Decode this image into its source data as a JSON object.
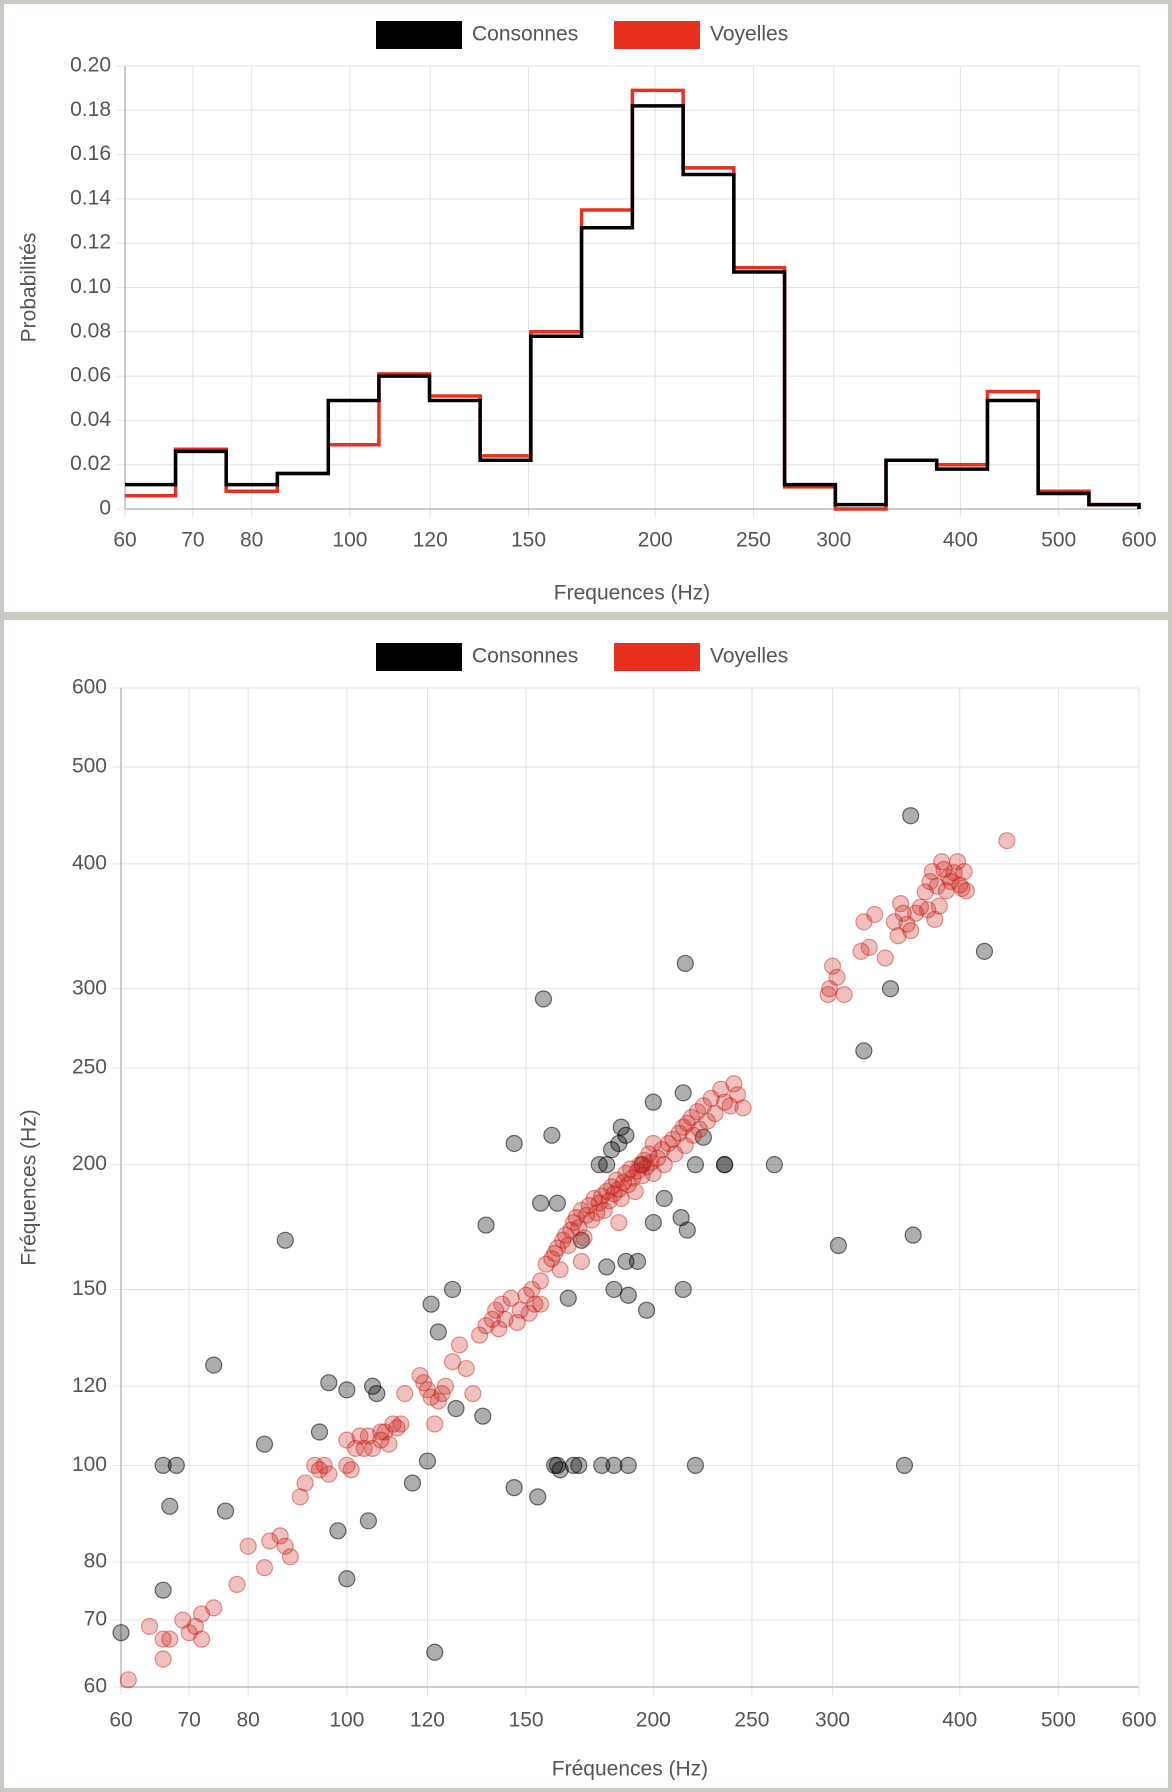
{
  "chart_data": [
    {
      "type": "histogram-step",
      "title": "",
      "xlabel": "Frequences (Hz)",
      "ylabel": "Probabilités",
      "xscale": "log",
      "xlim": [
        60,
        600
      ],
      "ylim": [
        0,
        0.2
      ],
      "x_ticks": [
        60,
        70,
        80,
        100,
        120,
        150,
        200,
        250,
        300,
        400,
        500,
        600
      ],
      "y_ticks": [
        0,
        0.02,
        0.04,
        0.06,
        0.08,
        0.1,
        0.12,
        0.14,
        0.16,
        0.18,
        0.2
      ],
      "y_tick_labels": [
        "0",
        "0.02",
        "0.04",
        "0.06",
        "0.08",
        "0.10",
        "0.12",
        "0.14",
        "0.16",
        "0.18",
        "0.20"
      ],
      "bin_edges": [
        60,
        67.3,
        75.5,
        84.8,
        95.2,
        106.8,
        119.8,
        134.4,
        150.8,
        169.2,
        189.9,
        213.1,
        239.1,
        268.3,
        301.1,
        337.8,
        379,
        425.3,
        477.2,
        535.5,
        600
      ],
      "series": [
        {
          "name": "Consonnes",
          "color": "#000000",
          "values": [
            0.011,
            0.026,
            0.011,
            0.016,
            0.049,
            0.06,
            0.049,
            0.022,
            0.078,
            0.127,
            0.182,
            0.151,
            0.107,
            0.011,
            0.002,
            0.022,
            0.018,
            0.049,
            0.007,
            0.002,
            0.0
          ]
        },
        {
          "name": "Voyelles",
          "color": "#e8301f",
          "values": [
            0.006,
            0.027,
            0.008,
            0.016,
            0.029,
            0.061,
            0.051,
            0.024,
            0.08,
            0.135,
            0.189,
            0.154,
            0.109,
            0.01,
            0.0,
            0.022,
            0.02,
            0.053,
            0.008,
            0.002,
            0.0
          ]
        }
      ],
      "legend": {
        "position": "top-center",
        "items": [
          "Consonnes",
          "Voyelles"
        ]
      }
    },
    {
      "type": "scatter",
      "title": "",
      "xlabel": "Fréquences (Hz)",
      "ylabel": "Fréquences (Hz)",
      "xscale": "log",
      "yscale": "log",
      "xlim": [
        60,
        600
      ],
      "ylim": [
        60,
        600
      ],
      "x_ticks": [
        60,
        70,
        80,
        100,
        120,
        150,
        200,
        250,
        300,
        400,
        500,
        600
      ],
      "y_ticks": [
        60,
        70,
        80,
        100,
        120,
        150,
        200,
        250,
        300,
        400,
        500,
        600
      ],
      "legend": {
        "position": "top-center",
        "items": [
          "Consonnes",
          "Voyelles"
        ]
      },
      "series": [
        {
          "name": "Consonnes",
          "color": "#000000",
          "points": [
            [
              60,
              68
            ],
            [
              66,
              75
            ],
            [
              66,
              100
            ],
            [
              67,
              91
            ],
            [
              68,
              100
            ],
            [
              74,
              126
            ],
            [
              76,
              90
            ],
            [
              83,
              105
            ],
            [
              87,
              168
            ],
            [
              94,
              108
            ],
            [
              96,
              121
            ],
            [
              98,
              86
            ],
            [
              100,
              77
            ],
            [
              100,
              119
            ],
            [
              105,
              88
            ],
            [
              106,
              120
            ],
            [
              107,
              118
            ],
            [
              116,
              96
            ],
            [
              120,
              101
            ],
            [
              121,
              145
            ],
            [
              122,
              65
            ],
            [
              123,
              136
            ],
            [
              127,
              150
            ],
            [
              128,
              114
            ],
            [
              136,
              112
            ],
            [
              137,
              174
            ],
            [
              146,
              210
            ],
            [
              146,
              95
            ],
            [
              154,
              93
            ],
            [
              155,
              183
            ],
            [
              156,
              293
            ],
            [
              159,
              214
            ],
            [
              160,
              100
            ],
            [
              161,
              183
            ],
            [
              161,
              100
            ],
            [
              162,
              99
            ],
            [
              165,
              147
            ],
            [
              167,
              100
            ],
            [
              169,
              100
            ],
            [
              177,
              200
            ],
            [
              178,
              100
            ],
            [
              180,
              158
            ],
            [
              182,
              207
            ],
            [
              183,
              150
            ],
            [
              183,
              100
            ],
            [
              185,
              210
            ],
            [
              186,
              218
            ],
            [
              188,
              214
            ],
            [
              188,
              160
            ],
            [
              189,
              148
            ],
            [
              189,
              100
            ],
            [
              193,
              160
            ],
            [
              197,
              143
            ],
            [
              200,
              175
            ],
            [
              200,
              231
            ],
            [
              205,
              185
            ],
            [
              213,
              177
            ],
            [
              214,
              236
            ],
            [
              214,
              150
            ],
            [
              215,
              318
            ],
            [
              216,
              172
            ],
            [
              220,
              100
            ],
            [
              220,
              200
            ],
            [
              224,
              213
            ],
            [
              235,
              200
            ],
            [
              235,
              200
            ],
            [
              263,
              200
            ],
            [
              304,
              166
            ],
            [
              322,
              260
            ],
            [
              342,
              300
            ],
            [
              353,
              100
            ],
            [
              358,
              447
            ],
            [
              360,
              170
            ],
            [
              423,
              327
            ],
            [
              180,
              200
            ],
            [
              170,
              168
            ],
            [
              195,
              200
            ]
          ]
        },
        {
          "name": "Voyelles",
          "color": "#e8301f",
          "points": [
            [
              61,
              61
            ],
            [
              64,
              69
            ],
            [
              66,
              64
            ],
            [
              66,
              67
            ],
            [
              67,
              67
            ],
            [
              69,
              70
            ],
            [
              70,
              68
            ],
            [
              71,
              69
            ],
            [
              72,
              67
            ],
            [
              72,
              71
            ],
            [
              74,
              72
            ],
            [
              78,
              76
            ],
            [
              80,
              83
            ],
            [
              83,
              79
            ],
            [
              84,
              84
            ],
            [
              86,
              85
            ],
            [
              87,
              83
            ],
            [
              88,
              81
            ],
            [
              90,
              93
            ],
            [
              91,
              96
            ],
            [
              93,
              100
            ],
            [
              94,
              99
            ],
            [
              95,
              100
            ],
            [
              96,
              98
            ],
            [
              100,
              100
            ],
            [
              100,
              106
            ],
            [
              101,
              99
            ],
            [
              102,
              104
            ],
            [
              103,
              107
            ],
            [
              104,
              104
            ],
            [
              105,
              107
            ],
            [
              106,
              104
            ],
            [
              108,
              106
            ],
            [
              108,
              108
            ],
            [
              109,
              108
            ],
            [
              110,
              105
            ],
            [
              111,
              110
            ],
            [
              112,
              109
            ],
            [
              113,
              110
            ],
            [
              114,
              118
            ],
            [
              118,
              123
            ],
            [
              119,
              121
            ],
            [
              120,
              119
            ],
            [
              121,
              117
            ],
            [
              122,
              110
            ],
            [
              123,
              116
            ],
            [
              124,
              118
            ],
            [
              125,
              120
            ],
            [
              127,
              127
            ],
            [
              129,
              132
            ],
            [
              131,
              125
            ],
            [
              133,
              118
            ],
            [
              135,
              135
            ],
            [
              137,
              138
            ],
            [
              139,
              140
            ],
            [
              140,
              143
            ],
            [
              141,
              137
            ],
            [
              142,
              145
            ],
            [
              143,
              140
            ],
            [
              145,
              147
            ],
            [
              147,
              139
            ],
            [
              148,
              143
            ],
            [
              150,
              148
            ],
            [
              151,
              142
            ],
            [
              152,
              150
            ],
            [
              153,
              145
            ],
            [
              155,
              153
            ],
            [
              157,
              159
            ],
            [
              159,
              161
            ],
            [
              160,
              163
            ],
            [
              161,
              165
            ],
            [
              162,
              157
            ],
            [
              163,
              168
            ],
            [
              164,
              170
            ],
            [
              165,
              166
            ],
            [
              166,
              172
            ],
            [
              167,
              175
            ],
            [
              168,
              177
            ],
            [
              169,
              173
            ],
            [
              170,
              180
            ],
            [
              171,
              169
            ],
            [
              172,
              178
            ],
            [
              173,
              182
            ],
            [
              174,
              176
            ],
            [
              175,
              185
            ],
            [
              176,
              179
            ],
            [
              177,
              183
            ],
            [
              178,
              186
            ],
            [
              179,
              180
            ],
            [
              180,
              188
            ],
            [
              181,
              184
            ],
            [
              182,
              190
            ],
            [
              183,
              187
            ],
            [
              184,
              193
            ],
            [
              185,
              189
            ],
            [
              186,
              185
            ],
            [
              187,
              192
            ],
            [
              188,
              196
            ],
            [
              189,
              191
            ],
            [
              190,
              198
            ],
            [
              191,
              194
            ],
            [
              192,
              188
            ],
            [
              193,
              197
            ],
            [
              194,
              200
            ],
            [
              195,
              195
            ],
            [
              196,
              202
            ],
            [
              197,
              199
            ],
            [
              198,
              205
            ],
            [
              199,
              201
            ],
            [
              200,
              196
            ],
            [
              202,
              203
            ],
            [
              204,
              207
            ],
            [
              205,
              200
            ],
            [
              207,
              210
            ],
            [
              209,
              212
            ],
            [
              210,
              205
            ],
            [
              212,
              215
            ],
            [
              214,
              218
            ],
            [
              215,
              209
            ],
            [
              216,
              220
            ],
            [
              218,
              223
            ],
            [
              219,
              214
            ],
            [
              221,
              226
            ],
            [
              222,
              217
            ],
            [
              224,
              229
            ],
            [
              226,
              221
            ],
            [
              228,
              233
            ],
            [
              230,
              225
            ],
            [
              233,
              238
            ],
            [
              235,
              231
            ],
            [
              238,
              229
            ],
            [
              240,
              241
            ],
            [
              242,
              235
            ],
            [
              245,
              228
            ],
            [
              297,
              296
            ],
            [
              298,
              300
            ],
            [
              300,
              316
            ],
            [
              303,
              308
            ],
            [
              308,
              296
            ],
            [
              320,
              327
            ],
            [
              322,
              350
            ],
            [
              326,
              330
            ],
            [
              330,
              356
            ],
            [
              338,
              322
            ],
            [
              345,
              350
            ],
            [
              348,
              339
            ],
            [
              350,
              365
            ],
            [
              352,
              357
            ],
            [
              355,
              348
            ],
            [
              358,
              343
            ],
            [
              362,
              357
            ],
            [
              366,
              362
            ],
            [
              370,
              375
            ],
            [
              372,
              360
            ],
            [
              374,
              384
            ],
            [
              376,
              393
            ],
            [
              378,
              352
            ],
            [
              380,
              380
            ],
            [
              382,
              363
            ],
            [
              384,
              402
            ],
            [
              386,
              395
            ],
            [
              388,
              376
            ],
            [
              390,
              388
            ],
            [
              392,
              384
            ],
            [
              395,
              392
            ],
            [
              398,
              402
            ],
            [
              400,
              381
            ],
            [
              402,
              378
            ],
            [
              404,
              393
            ],
            [
              406,
              376
            ],
            [
              445,
              422
            ],
            [
              170,
              160
            ],
            [
              185,
              175
            ],
            [
              200,
              210
            ],
            [
              155,
              145
            ]
          ]
        }
      ]
    }
  ]
}
